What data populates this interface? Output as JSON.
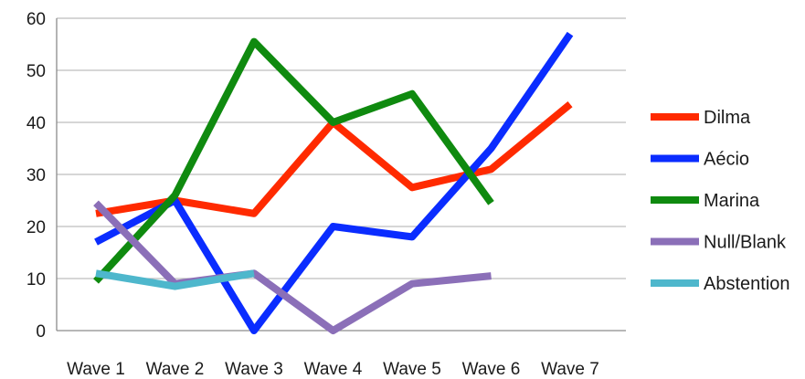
{
  "chart_data": {
    "type": "line",
    "title": "",
    "xlabel": "",
    "ylabel": "",
    "categories": [
      "Wave 1",
      "Wave 2",
      "Wave 3",
      "Wave 4",
      "Wave 5",
      "Wave 6",
      "Wave 7"
    ],
    "ylim": [
      0,
      60
    ],
    "yticks": [
      0,
      10,
      20,
      30,
      40,
      50,
      60
    ],
    "grid": true,
    "legend_position": "right",
    "series": [
      {
        "name": "Dilma",
        "color": "#ff2a00",
        "values": [
          22.5,
          25,
          22.5,
          40,
          27.5,
          31,
          43.5
        ]
      },
      {
        "name": "Aécio",
        "color": "#0a2cff",
        "values": [
          17,
          25,
          0,
          20,
          18,
          35,
          57
        ]
      },
      {
        "name": "Marina",
        "color": "#0f8a0f",
        "values": [
          9.5,
          26,
          55.5,
          40,
          45.5,
          24.5,
          null
        ]
      },
      {
        "name": "Null/Blank",
        "color": "#8b6fb8",
        "values": [
          24.5,
          9,
          11,
          0,
          9,
          10.5,
          null
        ]
      },
      {
        "name": "Abstention",
        "color": "#4eb7cc",
        "values": [
          11,
          8.5,
          11,
          null,
          null,
          null,
          null
        ]
      }
    ]
  }
}
